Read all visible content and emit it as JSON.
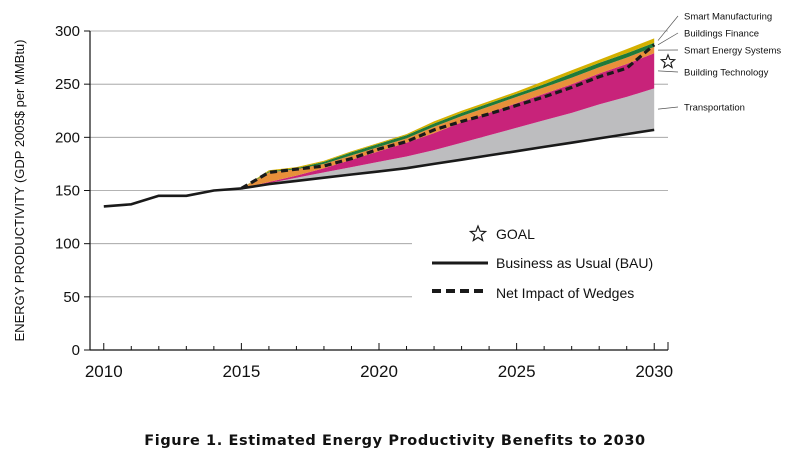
{
  "chart_data": {
    "type": "area",
    "title": "",
    "caption": "Figure 1. Estimated Energy Productivity Benefits to 2030",
    "xlabel": "",
    "ylabel": "ENERGY PRODUCTIVITY (GDP 2005$ per MMBtu)",
    "xlim": [
      2009.5,
      2030.5
    ],
    "ylim": [
      0,
      300
    ],
    "xticks": [
      "2010",
      "2015",
      "2020",
      "2025",
      "2030"
    ],
    "yticks": [
      "0",
      "50",
      "100",
      "150",
      "200",
      "250",
      "300"
    ],
    "grid": true,
    "bau": {
      "name": "Business as Usual (BAU)",
      "x": [
        2010,
        2011,
        2012,
        2013,
        2014,
        2015,
        2016,
        2017,
        2018,
        2019,
        2020,
        2021,
        2022,
        2023,
        2024,
        2025,
        2026,
        2027,
        2028,
        2029,
        2030
      ],
      "y": [
        135,
        137,
        145,
        145,
        150,
        152,
        156,
        159,
        162,
        165,
        168,
        171,
        175,
        179,
        183,
        187,
        191,
        195,
        199,
        203,
        207
      ]
    },
    "wedges_x": [
      2015,
      2016,
      2017,
      2018,
      2019,
      2020,
      2021,
      2022,
      2023,
      2024,
      2025,
      2026,
      2027,
      2028,
      2029,
      2030
    ],
    "series": [
      {
        "name": "Transportation",
        "color": "#bdbdbf",
        "values": [
          0,
          1,
          3,
          5,
          7,
          9,
          11,
          13,
          16,
          19,
          22,
          25,
          28,
          32,
          35,
          39
        ]
      },
      {
        "name": "Building Technology",
        "color": "#c8237a",
        "values": [
          0,
          1,
          2,
          4,
          7,
          10,
          13,
          16,
          19,
          21,
          23,
          25,
          27,
          29,
          31,
          33
        ]
      },
      {
        "name": "Smart Energy Systems",
        "color": "#e8903a",
        "values": [
          0,
          9,
          6,
          4,
          4,
          4,
          4,
          6,
          6,
          6,
          6,
          6,
          6,
          6,
          6,
          6
        ]
      },
      {
        "name": "Buildings Finance",
        "color": "#1f7a3a",
        "values": [
          0,
          1,
          1,
          2,
          3,
          3,
          3,
          3,
          3,
          3,
          3,
          3,
          4,
          4,
          4,
          4
        ]
      },
      {
        "name": "Smart Manufacturing",
        "color": "#d4b000",
        "values": [
          0,
          1,
          1,
          1,
          1,
          1,
          1,
          2,
          2,
          2,
          2,
          3,
          3,
          3,
          4,
          4
        ]
      }
    ],
    "net_impact": {
      "name": "Net Impact of Wedges",
      "x": [
        2015,
        2016,
        2017,
        2018,
        2019,
        2020,
        2021,
        2022,
        2023,
        2024,
        2025,
        2026,
        2027,
        2028,
        2029,
        2030
      ],
      "y": [
        152,
        167,
        170,
        173,
        180,
        189,
        196,
        207,
        215,
        222,
        230,
        238,
        247,
        257,
        265,
        287
      ]
    },
    "goal": {
      "name": "GOAL",
      "x": 2030.5,
      "y": 271
    },
    "legend": [
      "GOAL",
      "Business as Usual (BAU)",
      "Net Impact of Wedges"
    ],
    "legend_position": "center-right"
  }
}
